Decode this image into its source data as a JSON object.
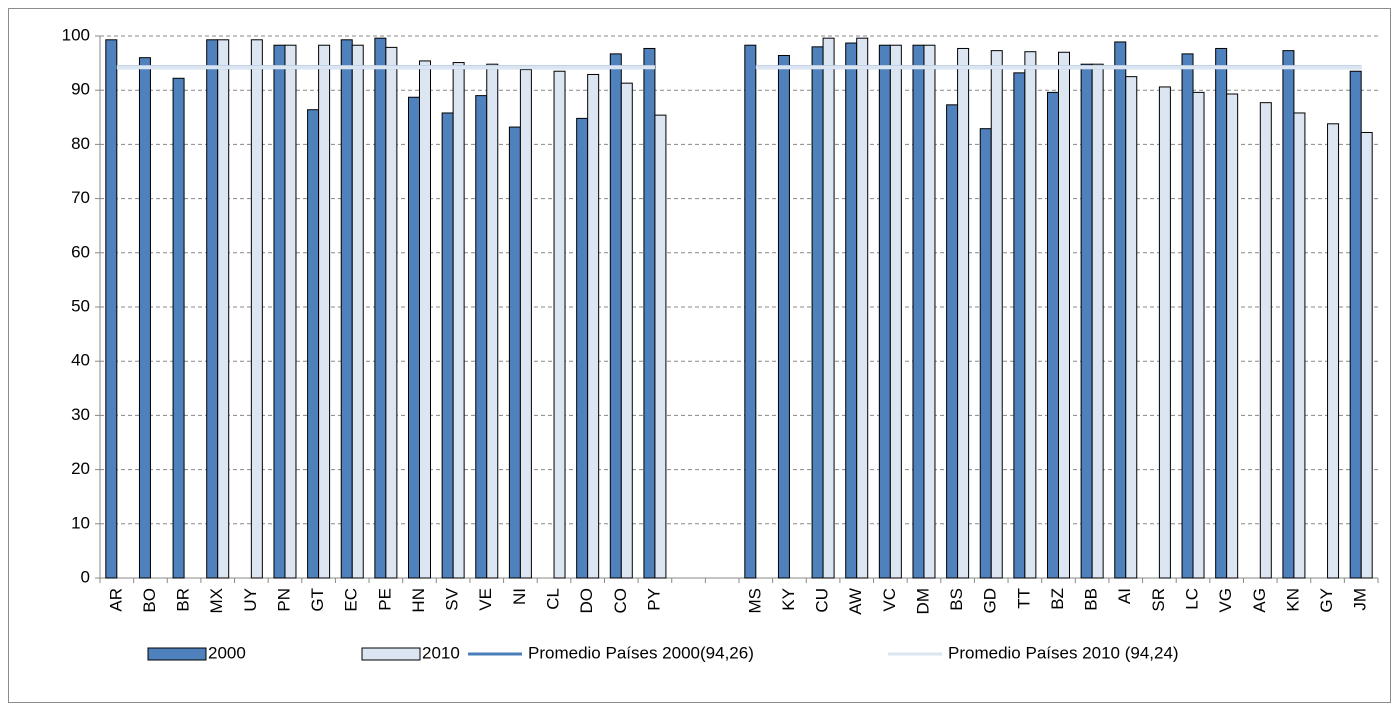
{
  "chart_data": {
    "type": "bar",
    "categories": [
      "AR",
      "BO",
      "BR",
      "MX",
      "UY",
      "PN",
      "GT",
      "EC",
      "PE",
      "HN",
      "SV",
      "VE",
      "NI",
      "CL",
      "DO",
      "CO",
      "PY",
      null,
      null,
      "MS",
      "KY",
      "CU",
      "AW",
      "VC",
      "DM",
      "BS",
      "GD",
      "TT",
      "BZ",
      "BB",
      "AI",
      "SR",
      "LC",
      "VG",
      "AG",
      "KN",
      "GY",
      "JM"
    ],
    "series": [
      {
        "name": "2000",
        "type": "bar",
        "color": "#4f81bd",
        "values": [
          99.3,
          96,
          92.2,
          99.3,
          null,
          98.3,
          86.4,
          99.3,
          99.6,
          88.7,
          85.8,
          89,
          83.2,
          null,
          84.8,
          96.7,
          97.7,
          null,
          null,
          98.3,
          96.4,
          98,
          98.7,
          98.3,
          98.3,
          87.3,
          82.9,
          93.2,
          89.6,
          94.8,
          98.9,
          null,
          96.7,
          97.7,
          null,
          97.3,
          null,
          93.5
        ]
      },
      {
        "name": "2010",
        "type": "bar",
        "color": "#dce6f2",
        "values": [
          null,
          null,
          null,
          99.3,
          99.3,
          98.3,
          98.3,
          98.3,
          97.9,
          95.4,
          95.1,
          94.8,
          93.8,
          93.5,
          92.9,
          91.3,
          85.4,
          null,
          null,
          null,
          null,
          99.6,
          99.6,
          98.3,
          98.3,
          97.7,
          97.3,
          97.1,
          97,
          94.8,
          92.5,
          90.6,
          89.6,
          89.3,
          87.7,
          85.8,
          83.8,
          82.2
        ]
      },
      {
        "name": "Promedio Países 2000(94,26)",
        "type": "line",
        "color": "#4a7ebb",
        "values": [
          94.26,
          94.26,
          94.26,
          94.26,
          94.26,
          94.26,
          94.26,
          94.26,
          94.26,
          94.26,
          94.26,
          94.26,
          94.26,
          94.26,
          94.26,
          94.26,
          94.26,
          null,
          null,
          94.26,
          94.26,
          94.26,
          94.26,
          94.26,
          94.26,
          94.26,
          94.26,
          94.26,
          94.26,
          94.26,
          94.26,
          94.26,
          94.26,
          94.26,
          94.26,
          94.26,
          94.26,
          94.26
        ]
      },
      {
        "name": "Promedio Países 2010 (94,24)",
        "type": "line",
        "color": "#dbe5f1",
        "values": [
          94.24,
          94.24,
          94.24,
          94.24,
          94.24,
          94.24,
          94.24,
          94.24,
          94.24,
          94.24,
          94.24,
          94.24,
          94.24,
          94.24,
          94.24,
          94.24,
          94.24,
          null,
          null,
          94.24,
          94.24,
          94.24,
          94.24,
          94.24,
          94.24,
          94.24,
          94.24,
          94.24,
          94.24,
          94.24,
          94.24,
          94.24,
          94.24,
          94.24,
          94.24,
          94.24,
          94.24,
          94.24
        ]
      }
    ],
    "ylim": [
      0,
      100
    ],
    "yticks": [
      0,
      10,
      20,
      30,
      40,
      50,
      60,
      70,
      80,
      90,
      100
    ],
    "grid": true,
    "legend": "bottom"
  }
}
